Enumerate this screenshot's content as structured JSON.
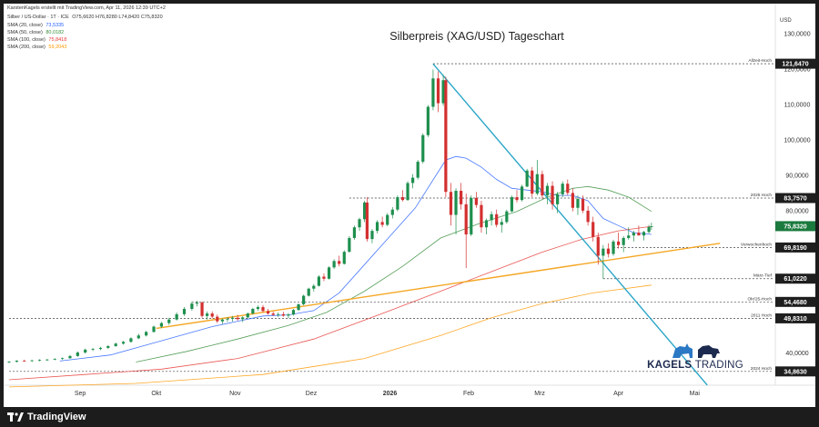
{
  "header": {
    "author_line": "KarstenKagels erstellt mit TradingView.com, Apr 11, 2026 12:39 UTC+2",
    "symbol": "Silber / US-Dollar · 1T · ICE",
    "ohlc": "O75,6620 H76,8280 L74,8420 C75,8320",
    "indicators": [
      {
        "label": "SMA (20, close)",
        "value": "73,5335",
        "color": "#2962ff"
      },
      {
        "label": "SMA (50, close)",
        "value": "80,0182",
        "color": "#388e3c"
      },
      {
        "label": "SMA (100, close)",
        "value": "75,8418",
        "color": "#e53935"
      },
      {
        "label": "SMA (200, close)",
        "value": "59,2043",
        "color": "#ff9800"
      }
    ]
  },
  "chart_data": {
    "type": "candlestick",
    "title": "Silberpreis (XAG/USD) Tageschart",
    "currency": "USD",
    "ylim": [
      32,
      135
    ],
    "y_ticks": [
      "40,0000",
      "80,0000",
      "90,0000",
      "100,0000",
      "110,0000",
      "120,0000",
      "130,0000"
    ],
    "y_tick_values": [
      40,
      80,
      90,
      100,
      110,
      120,
      130
    ],
    "x_ticks": [
      "Sep",
      "Okt",
      "Nov",
      "Dez",
      "2026",
      "Feb",
      "Mrz",
      "Apr",
      "Mai"
    ],
    "x_tick_days": [
      28,
      58,
      89,
      119,
      150,
      181,
      209,
      240,
      270
    ],
    "date_origin": "2025-08-04",
    "candles": [
      [
        0,
        37.5,
        37.8,
        37.2,
        37.6
      ],
      [
        3,
        37.6,
        38.0,
        37.4,
        37.9
      ],
      [
        6,
        37.9,
        38.2,
        37.6,
        37.8
      ],
      [
        9,
        37.8,
        38.1,
        37.5,
        38.0
      ],
      [
        12,
        38.0,
        38.3,
        37.7,
        38.1
      ],
      [
        15,
        38.1,
        38.4,
        37.9,
        38.2
      ],
      [
        18,
        38.2,
        38.6,
        38.0,
        38.4
      ],
      [
        21,
        38.4,
        38.8,
        38.1,
        38.6
      ],
      [
        24,
        38.6,
        39.5,
        38.4,
        39.2
      ],
      [
        27,
        39.2,
        40.5,
        39.0,
        40.2
      ],
      [
        30,
        40.2,
        41.3,
        39.9,
        41.0
      ],
      [
        33,
        41.0,
        41.5,
        40.6,
        41.2
      ],
      [
        36,
        41.2,
        41.8,
        40.8,
        41.5
      ],
      [
        39,
        41.5,
        42.3,
        41.2,
        42.0
      ],
      [
        42,
        42.0,
        43.0,
        41.8,
        42.7
      ],
      [
        45,
        42.7,
        43.5,
        42.4,
        43.2
      ],
      [
        48,
        43.2,
        44.5,
        43.0,
        44.2
      ],
      [
        51,
        44.2,
        45.5,
        44.0,
        45.0
      ],
      [
        54,
        45.0,
        46.3,
        44.7,
        46.0
      ],
      [
        57,
        46.0,
        47.8,
        45.8,
        47.5
      ],
      [
        60,
        47.5,
        48.8,
        47.1,
        48.5
      ],
      [
        63,
        48.5,
        50.0,
        48.0,
        49.5
      ],
      [
        66,
        49.5,
        51.5,
        49.2,
        51.0
      ],
      [
        69,
        51.0,
        53.0,
        50.5,
        52.5
      ],
      [
        72,
        52.5,
        54.5,
        52.0,
        54.0
      ],
      [
        74,
        54.0,
        54.8,
        53.2,
        54.3
      ],
      [
        76,
        54.3,
        54.6,
        50.0,
        50.5
      ],
      [
        78,
        50.5,
        51.8,
        49.5,
        51.2
      ],
      [
        80,
        51.2,
        51.8,
        49.8,
        50.3
      ],
      [
        82,
        50.3,
        50.9,
        48.5,
        49.0
      ],
      [
        84,
        49.0,
        49.8,
        48.2,
        49.5
      ],
      [
        86,
        49.5,
        50.2,
        48.8,
        49.7
      ],
      [
        88,
        49.7,
        50.5,
        48.9,
        50.0
      ],
      [
        90,
        50.0,
        50.8,
        49.2,
        49.6
      ],
      [
        92,
        49.6,
        50.4,
        48.8,
        50.1
      ],
      [
        94,
        50.1,
        51.5,
        49.8,
        51.2
      ],
      [
        96,
        51.2,
        52.8,
        50.9,
        52.5
      ],
      [
        98,
        52.5,
        53.5,
        52.0,
        53.0
      ],
      [
        100,
        53.0,
        53.6,
        51.5,
        51.9
      ],
      [
        102,
        51.9,
        52.5,
        50.8,
        51.2
      ],
      [
        104,
        51.2,
        51.8,
        50.5,
        50.8
      ],
      [
        106,
        50.8,
        51.5,
        50.2,
        51.0
      ],
      [
        108,
        51.0,
        51.7,
        50.3,
        50.6
      ],
      [
        110,
        50.6,
        51.3,
        49.9,
        50.9
      ],
      [
        112,
        50.9,
        52.5,
        50.6,
        52.2
      ],
      [
        114,
        52.2,
        54.0,
        52.0,
        53.8
      ],
      [
        116,
        53.8,
        56.5,
        53.5,
        56.2
      ],
      [
        118,
        56.2,
        58.5,
        56.0,
        58.2
      ],
      [
        120,
        58.2,
        59.5,
        57.4,
        59.0
      ],
      [
        122,
        59.0,
        62.0,
        58.8,
        61.6
      ],
      [
        124,
        61.6,
        62.5,
        60.3,
        61.0
      ],
      [
        126,
        61.0,
        64.5,
        60.8,
        64.2
      ],
      [
        128,
        64.2,
        66.5,
        63.8,
        66.0
      ],
      [
        130,
        66.0,
        67.5,
        64.5,
        65.2
      ],
      [
        132,
        65.2,
        69.0,
        65.0,
        68.6
      ],
      [
        134,
        68.6,
        73.0,
        68.4,
        72.5
      ],
      [
        136,
        72.5,
        76.0,
        72.0,
        75.5
      ],
      [
        138,
        75.5,
        78.2,
        74.5,
        77.8
      ],
      [
        140,
        77.8,
        83.0,
        77.0,
        82.5
      ],
      [
        141,
        82.5,
        84.0,
        71.5,
        72.2
      ],
      [
        143,
        72.2,
        75.0,
        71.0,
        74.5
      ],
      [
        145,
        74.5,
        77.5,
        73.8,
        77.0
      ],
      [
        147,
        77.0,
        78.5,
        75.5,
        76.2
      ],
      [
        149,
        76.2,
        79.5,
        75.8,
        79.0
      ],
      [
        151,
        79.0,
        81.2,
        78.0,
        80.5
      ],
      [
        153,
        80.5,
        84.5,
        80.0,
        84.0
      ],
      [
        155,
        84.0,
        86.0,
        82.8,
        83.2
      ],
      [
        157,
        83.2,
        88.5,
        83.0,
        88.0
      ],
      [
        159,
        88.0,
        90.5,
        86.5,
        89.5
      ],
      [
        161,
        89.5,
        94.5,
        89.0,
        94.0
      ],
      [
        163,
        94.0,
        102.0,
        93.5,
        101.5
      ],
      [
        165,
        101.5,
        110.0,
        101.0,
        109.5
      ],
      [
        167,
        109.5,
        120.0,
        108.5,
        117.5
      ],
      [
        169,
        117.5,
        119.5,
        108.0,
        110.5
      ],
      [
        171,
        110.5,
        118.5,
        109.8,
        117.0
      ],
      [
        172,
        117.0,
        118.0,
        84.0,
        85.5
      ],
      [
        174,
        85.5,
        88.0,
        76.0,
        79.0
      ],
      [
        176,
        79.0,
        86.5,
        73.5,
        85.8
      ],
      [
        178,
        85.8,
        88.0,
        80.5,
        82.0
      ],
      [
        180,
        82.0,
        85.0,
        64.0,
        73.5
      ],
      [
        182,
        73.5,
        84.5,
        73.0,
        83.8
      ],
      [
        184,
        83.8,
        85.5,
        81.0,
        81.8
      ],
      [
        186,
        81.8,
        83.0,
        74.0,
        75.5
      ],
      [
        188,
        75.5,
        78.0,
        73.5,
        77.5
      ],
      [
        190,
        77.5,
        80.0,
        76.0,
        79.2
      ],
      [
        192,
        79.2,
        80.5,
        75.5,
        76.2
      ],
      [
        194,
        76.2,
        78.0,
        74.0,
        77.0
      ],
      [
        196,
        77.0,
        80.5,
        76.5,
        80.0
      ],
      [
        198,
        80.0,
        84.5,
        79.8,
        84.0
      ],
      [
        200,
        84.0,
        86.0,
        82.5,
        83.2
      ],
      [
        202,
        83.2,
        87.5,
        82.8,
        87.0
      ],
      [
        204,
        87.0,
        92.0,
        86.8,
        91.5
      ],
      [
        206,
        91.5,
        92.5,
        84.0,
        85.0
      ],
      [
        208,
        85.0,
        94.5,
        84.5,
        90.5
      ],
      [
        210,
        90.5,
        91.5,
        83.5,
        84.5
      ],
      [
        212,
        84.5,
        88.0,
        82.0,
        87.2
      ],
      [
        214,
        87.2,
        88.5,
        80.5,
        82.0
      ],
      [
        216,
        82.0,
        85.5,
        79.5,
        84.8
      ],
      [
        218,
        84.8,
        88.5,
        84.0,
        87.8
      ],
      [
        220,
        87.8,
        89.0,
        84.5,
        85.2
      ],
      [
        222,
        85.2,
        86.5,
        80.0,
        81.0
      ],
      [
        224,
        81.0,
        84.5,
        79.0,
        83.5
      ],
      [
        226,
        83.5,
        84.5,
        79.5,
        80.2
      ],
      [
        228,
        80.2,
        81.5,
        76.0,
        77.0
      ],
      [
        230,
        77.0,
        78.5,
        71.5,
        72.8
      ],
      [
        232,
        72.8,
        74.0,
        65.0,
        67.5
      ],
      [
        234,
        67.5,
        70.5,
        61.0,
        69.5
      ],
      [
        236,
        69.5,
        71.0,
        67.0,
        68.0
      ],
      [
        238,
        68.0,
        72.0,
        67.5,
        71.5
      ],
      [
        240,
        71.5,
        74.0,
        69.5,
        70.5
      ],
      [
        242,
        70.5,
        73.0,
        68.5,
        72.5
      ],
      [
        244,
        72.5,
        75.5,
        72.0,
        73.2
      ],
      [
        246,
        73.2,
        74.5,
        71.5,
        74.0
      ],
      [
        248,
        74.0,
        76.0,
        73.5,
        73.2
      ],
      [
        250,
        73.2,
        74.5,
        71.8,
        74.2
      ],
      [
        252,
        74.2,
        76.2,
        73.8,
        75.6
      ],
      [
        253,
        75.6,
        76.8,
        74.8,
        75.8
      ]
    ],
    "sma": [
      {
        "name": "SMA (20, close)",
        "color": "#2962ff",
        "points": [
          [
            20,
            37.8
          ],
          [
            40,
            39.5
          ],
          [
            60,
            43.5
          ],
          [
            80,
            47.5
          ],
          [
            100,
            50.5
          ],
          [
            110,
            50.8
          ],
          [
            120,
            52.0
          ],
          [
            130,
            57.0
          ],
          [
            140,
            65.0
          ],
          [
            150,
            73.0
          ],
          [
            160,
            81.0
          ],
          [
            168,
            90.0
          ],
          [
            172,
            94.5
          ],
          [
            176,
            95.5
          ],
          [
            180,
            95.0
          ],
          [
            186,
            92.5
          ],
          [
            192,
            89.0
          ],
          [
            198,
            86.5
          ],
          [
            204,
            86.0
          ],
          [
            210,
            85.5
          ],
          [
            216,
            84.5
          ],
          [
            222,
            84.5
          ],
          [
            228,
            83.0
          ],
          [
            234,
            78.0
          ],
          [
            240,
            76.0
          ],
          [
            246,
            74.0
          ],
          [
            253,
            73.5
          ]
        ]
      },
      {
        "name": "SMA (50, close)",
        "color": "#388e3c",
        "points": [
          [
            50,
            37.5
          ],
          [
            70,
            40.5
          ],
          [
            90,
            44.0
          ],
          [
            110,
            47.8
          ],
          [
            125,
            51.5
          ],
          [
            140,
            57.5
          ],
          [
            155,
            64.5
          ],
          [
            170,
            72.5
          ],
          [
            185,
            76.5
          ],
          [
            200,
            80.0
          ],
          [
            212,
            84.0
          ],
          [
            222,
            86.5
          ],
          [
            228,
            87.0
          ],
          [
            236,
            86.0
          ],
          [
            244,
            84.0
          ],
          [
            253,
            80.0
          ]
        ]
      },
      {
        "name": "SMA (100, close)",
        "color": "#e53935",
        "points": [
          [
            0,
            32.5
          ],
          [
            30,
            34.0
          ],
          [
            60,
            35.5
          ],
          [
            90,
            38.5
          ],
          [
            120,
            44.0
          ],
          [
            150,
            52.0
          ],
          [
            170,
            57.5
          ],
          [
            190,
            63.0
          ],
          [
            210,
            68.5
          ],
          [
            225,
            72.0
          ],
          [
            240,
            74.5
          ],
          [
            253,
            75.8
          ]
        ]
      },
      {
        "name": "SMA (200, close)",
        "color": "#ff9800",
        "points": [
          [
            0,
            30.5
          ],
          [
            50,
            31.5
          ],
          [
            100,
            34.0
          ],
          [
            140,
            38.5
          ],
          [
            170,
            45.0
          ],
          [
            190,
            50.0
          ],
          [
            210,
            54.0
          ],
          [
            230,
            57.0
          ],
          [
            253,
            59.2
          ]
        ]
      }
    ],
    "levels": [
      {
        "label": "Allzeit-Hoch",
        "value_text": "121,6470",
        "value": 121.647,
        "from_day": 167,
        "dashed": true
      },
      {
        "label": "2025 Hoch",
        "value_text": "83,7570",
        "value": 83.757,
        "from_day": 134,
        "dashed": true
      },
      {
        "label": "Vorwochenhoch",
        "value_text": "69,8190",
        "value": 69.819,
        "from_day": 238,
        "dashed": true
      },
      {
        "label": "März-Tief",
        "value_text": "61,0220",
        "value": 61.022,
        "from_day": 234,
        "dashed": true
      },
      {
        "label": "Okt'25-Hoch",
        "value_text": "54,4680",
        "value": 54.468,
        "from_day": 72,
        "dashed": true
      },
      {
        "label": "2011 Hoch",
        "value_text": "49,8310",
        "value": 49.831,
        "from_day": 0,
        "dashed": true
      },
      {
        "label": "2024 Hoch",
        "value_text": "34,8630",
        "value": 34.863,
        "from_day": 0,
        "dashed": true
      }
    ],
    "current_price": {
      "value_text": "75,8320",
      "value": 75.832,
      "color": "#1b7a3e"
    },
    "trendlines": [
      {
        "name": "downtrend",
        "color": "#2ba6c7",
        "from": [
          167,
          121.6
        ],
        "to": [
          275,
          31.0
        ]
      },
      {
        "name": "uptrend",
        "color": "#f5a623",
        "from": [
          58,
          47.0
        ],
        "to": [
          280,
          71.0
        ]
      }
    ]
  },
  "branding": {
    "kagels_main": "KAGELS",
    "kagels_sub": "TRADING",
    "tradingview": "TradingView"
  }
}
